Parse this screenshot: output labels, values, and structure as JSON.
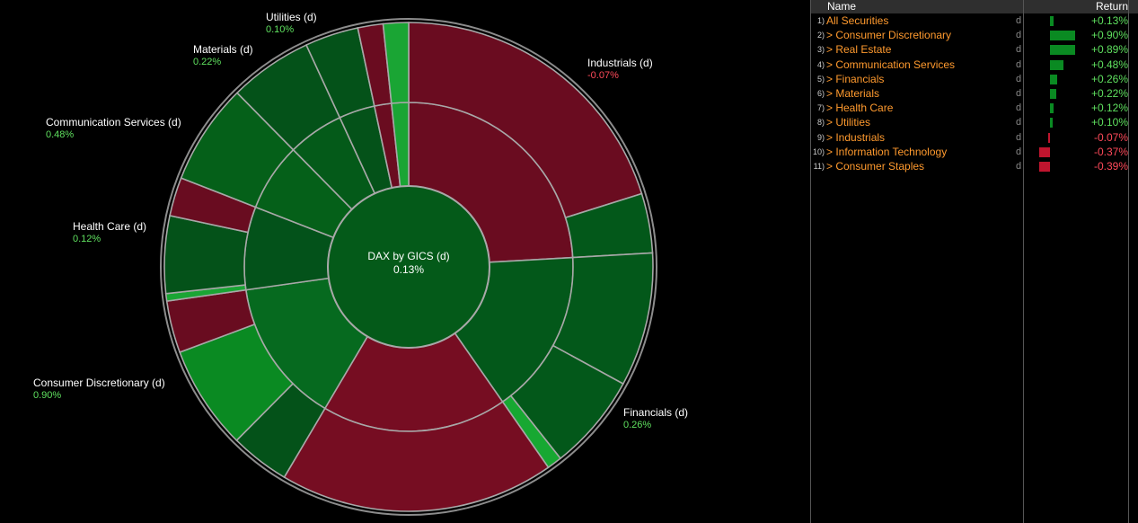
{
  "chart_data": {
    "type": "sunburst",
    "center": {
      "title": "DAX by GICS (d)",
      "value": "0.13%"
    },
    "sectors": [
      {
        "name": "Industrials (d)",
        "value": "-0.07%",
        "weight": 24.5,
        "color": "#6a0c20",
        "mid": [
          {
            "w": 24.5,
            "color": "#6a0c20"
          }
        ],
        "outer": [
          {
            "w": 20.5,
            "color": "#6a0c20"
          },
          {
            "w": 4.0,
            "color": "#03581a"
          }
        ]
      },
      {
        "name": "Financials (d)",
        "value": "0.26%",
        "weight": 16.5,
        "color": "#03581a",
        "mid": [
          {
            "w": 16.5,
            "color": "#03581a"
          }
        ],
        "outer": [
          {
            "w": 9.0,
            "color": "#03581a"
          },
          {
            "w": 6.5,
            "color": "#03581a"
          },
          {
            "w": 1.0,
            "color": "#17a832"
          }
        ]
      },
      {
        "name": "Information Technology (d)",
        "value": "-0.37%",
        "weight": 18.5,
        "color": "#760d22",
        "mid": [
          {
            "w": 18.5,
            "color": "#760d22"
          }
        ],
        "outer": [
          {
            "w": 18.5,
            "color": "#760d22"
          }
        ]
      },
      {
        "name": "Consumer Discretionary (d)",
        "value": "0.90%",
        "weight": 14.5,
        "color": "#066a1f",
        "mid": [
          {
            "w": 14.5,
            "color": "#066a1f"
          }
        ],
        "outer": [
          {
            "w": 4.0,
            "color": "#045219"
          },
          {
            "w": 7.0,
            "color": "#0a8a22"
          },
          {
            "w": 3.5,
            "color": "#690c20"
          }
        ]
      },
      {
        "name": "Health Care (d)",
        "value": "0.12%",
        "weight": 8.3,
        "color": "#03521a",
        "mid": [
          {
            "w": 8.3,
            "color": "#03521a"
          }
        ],
        "outer": [
          {
            "w": 0.5,
            "color": "#1aa534"
          },
          {
            "w": 5.2,
            "color": "#045219"
          },
          {
            "w": 2.6,
            "color": "#690c20"
          }
        ]
      },
      {
        "name": "Communication Services (d)",
        "value": "0.48%",
        "weight": 6.8,
        "color": "#056019",
        "mid": [
          {
            "w": 6.8,
            "color": "#056019"
          }
        ],
        "outer": [
          {
            "w": 6.8,
            "color": "#056019"
          }
        ]
      },
      {
        "name": "Materials (d)",
        "value": "0.22%",
        "weight": 5.6,
        "color": "#045a19",
        "mid": [
          {
            "w": 5.6,
            "color": "#045a19"
          }
        ],
        "outer": [
          {
            "w": 5.6,
            "color": "#045219"
          }
        ]
      },
      {
        "name": "Utilities (d)",
        "value": "0.10%",
        "weight": 3.6,
        "color": "#045219",
        "mid": [
          {
            "w": 3.6,
            "color": "#045219"
          }
        ],
        "outer": [
          {
            "w": 3.6,
            "color": "#045219"
          }
        ]
      },
      {
        "name": "Real Estate (d)",
        "value": "0.89%",
        "weight": 1.7,
        "color": "#6a0c20",
        "mid": [
          {
            "w": 1.7,
            "color": "#6a0c20"
          }
        ],
        "outer": [
          {
            "w": 1.7,
            "color": "#6a0c20"
          }
        ]
      },
      {
        "name": "Consumer Staples (d)",
        "value": "-0.39%",
        "weight": 1.7,
        "color": "#0a8a22",
        "mid": [
          {
            "w": 1.7,
            "color": "#1aa534"
          }
        ],
        "outer": [
          {
            "w": 1.7,
            "color": "#1aa534"
          }
        ]
      }
    ],
    "labels": [
      {
        "name": "Industrials (d)",
        "value": "-0.07%",
        "sign": "neg"
      },
      {
        "name": "Financials (d)",
        "value": "0.26%",
        "sign": "pos"
      },
      {
        "name": "Consumer Discretionary (d)",
        "value": "0.90%",
        "sign": "pos"
      },
      {
        "name": "Health Care (d)",
        "value": "0.12%",
        "sign": "pos"
      },
      {
        "name": "Communication Services (d)",
        "value": "0.48%",
        "sign": "pos"
      },
      {
        "name": "Materials (d)",
        "value": "0.22%",
        "sign": "pos"
      },
      {
        "name": "Utilities (d)",
        "value": "0.10%",
        "sign": "pos"
      }
    ]
  },
  "table": {
    "headers": {
      "name": "Name",
      "return": "Return"
    },
    "rows": [
      {
        "num": "1)",
        "name": "All Securities",
        "d": "d",
        "ret": "+0.13%",
        "value": 0.13
      },
      {
        "num": "2)",
        "name": "> Consumer Discretionary",
        "d": "d",
        "ret": "+0.90%",
        "value": 0.9
      },
      {
        "num": "3)",
        "name": "> Real Estate",
        "d": "d",
        "ret": "+0.89%",
        "value": 0.89
      },
      {
        "num": "4)",
        "name": "> Communication Services",
        "d": "d",
        "ret": "+0.48%",
        "value": 0.48
      },
      {
        "num": "5)",
        "name": "> Financials",
        "d": "d",
        "ret": "+0.26%",
        "value": 0.26
      },
      {
        "num": "6)",
        "name": "> Materials",
        "d": "d",
        "ret": "+0.22%",
        "value": 0.22
      },
      {
        "num": "7)",
        "name": "> Health Care",
        "d": "d",
        "ret": "+0.12%",
        "value": 0.12
      },
      {
        "num": "8)",
        "name": "> Utilities",
        "d": "d",
        "ret": "+0.10%",
        "value": 0.1
      },
      {
        "num": "9)",
        "name": "> Industrials",
        "d": "d",
        "ret": "-0.07%",
        "value": -0.07
      },
      {
        "num": "10)",
        "name": "> Information Technology",
        "d": "d",
        "ret": "-0.37%",
        "value": -0.37
      },
      {
        "num": "11)",
        "name": "> Consumer Staples",
        "d": "d",
        "ret": "-0.39%",
        "value": -0.39
      }
    ],
    "colors": {
      "pos_bar": "#0a8a22",
      "neg_bar": "#c0152e",
      "pos_text": "#5fe05f",
      "neg_text": "#ff4a5a"
    }
  }
}
